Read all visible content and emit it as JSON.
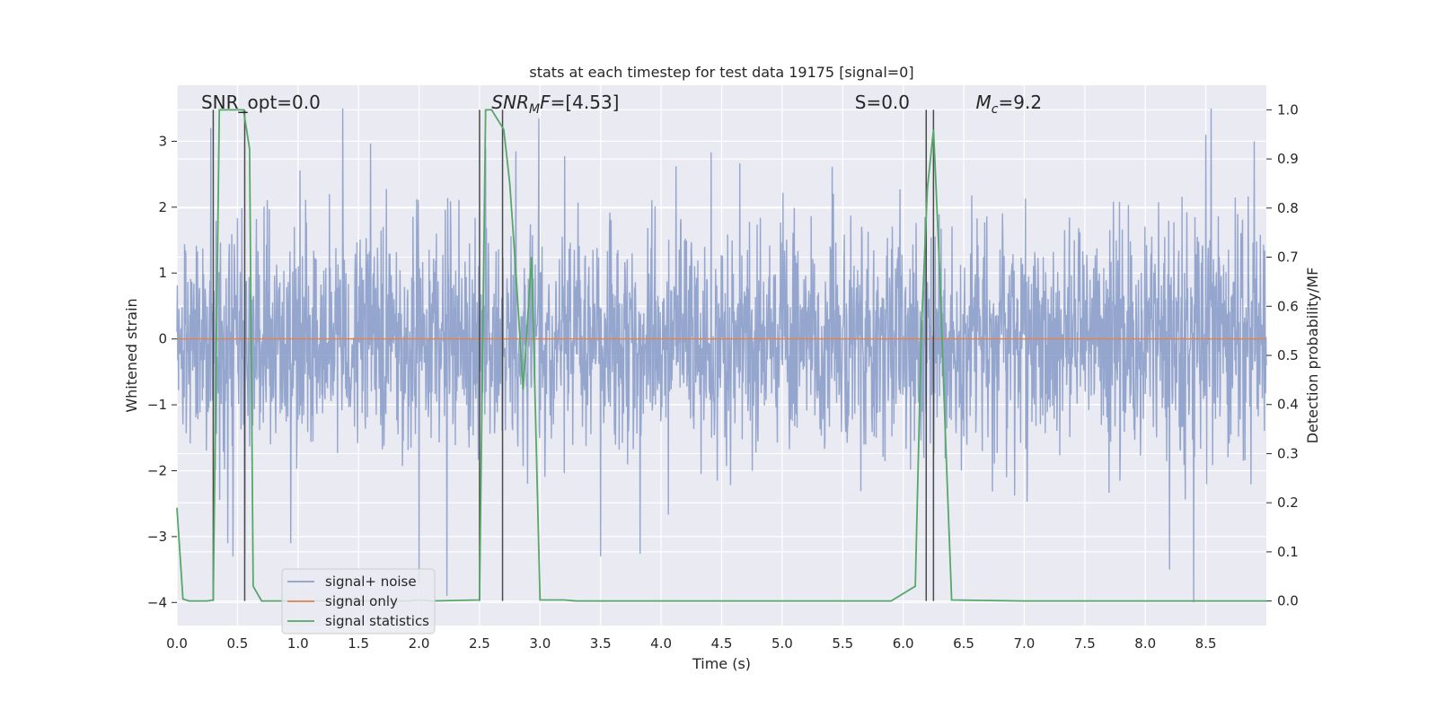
{
  "chart_data": {
    "type": "line",
    "title": "stats at each timestep for test data 19175 [signal=0]",
    "xlabel": "Time (s)",
    "ylabel": "Whitened strain",
    "y2label": "Detection probability/MF",
    "xlim": [
      0,
      9.0
    ],
    "ylim": [
      -4.35,
      3.85
    ],
    "y2lim": [
      -0.05,
      1.05
    ],
    "xticks": [
      0.0,
      0.5,
      1.0,
      1.5,
      2.0,
      2.5,
      3.0,
      3.5,
      4.0,
      4.5,
      5.0,
      5.5,
      6.0,
      6.5,
      7.0,
      7.5,
      8.0,
      8.5
    ],
    "xtick_labels": [
      "0.0",
      "0.5",
      "1.0",
      "1.5",
      "2.0",
      "2.5",
      "3.0",
      "3.5",
      "4.0",
      "4.5",
      "5.0",
      "5.5",
      "6.0",
      "6.5",
      "7.0",
      "7.5",
      "8.0",
      "8.5"
    ],
    "yticks": [
      -4,
      -3,
      -2,
      -1,
      0,
      1,
      2,
      3
    ],
    "ytick_labels": [
      "−4",
      "−3",
      "−2",
      "−1",
      "0",
      "1",
      "2",
      "3"
    ],
    "y2ticks": [
      0.0,
      0.1,
      0.2,
      0.3,
      0.4,
      0.5,
      0.6,
      0.7,
      0.8,
      0.9,
      1.0
    ],
    "y2tick_labels": [
      "0.0",
      "0.1",
      "0.2",
      "0.3",
      "0.4",
      "0.5",
      "0.6",
      "0.7",
      "0.8",
      "0.9",
      "1.0"
    ],
    "grid": true,
    "legend": "lower-left",
    "series": [
      {
        "name": "signal+ noise",
        "axis": "left",
        "color": "#8c9fca",
        "kind": "noise",
        "sample_rate": 300,
        "typical_range": [
          -1.6,
          1.6
        ],
        "peak_range": [
          -3.3,
          3.5
        ],
        "notable_peaks": [
          {
            "x": 0.28,
            "y": 3.2
          },
          {
            "x": 0.42,
            "y": -3.1
          },
          {
            "x": 0.56,
            "y": -3.25
          },
          {
            "x": 0.94,
            "y": -3.1
          },
          {
            "x": 1.37,
            "y": 3.5
          },
          {
            "x": 2.0,
            "y": -3.7
          },
          {
            "x": 2.23,
            "y": -3.9
          },
          {
            "x": 2.55,
            "y": 2.9
          },
          {
            "x": 2.99,
            "y": 3.35
          },
          {
            "x": 3.5,
            "y": -3.3
          },
          {
            "x": 8.2,
            "y": -3.5
          },
          {
            "x": 8.4,
            "y": -4.0
          },
          {
            "x": 8.5,
            "y": 3.1
          },
          {
            "x": 8.9,
            "y": 3.0
          }
        ]
      },
      {
        "name": "signal only",
        "axis": "left",
        "color": "#dd8452",
        "x": [
          0,
          9.0
        ],
        "y": [
          0,
          0
        ]
      },
      {
        "name": "signal statistics",
        "axis": "right",
        "color": "#55a868",
        "x": [
          0.0,
          0.05,
          0.1,
          0.25,
          0.3,
          0.35,
          0.55,
          0.6,
          0.63,
          0.7,
          0.8,
          1.9,
          2.0,
          2.1,
          2.5,
          2.55,
          2.6,
          2.7,
          2.75,
          2.8,
          2.86,
          2.93,
          3.0,
          3.2,
          3.3,
          4.0,
          5.0,
          5.9,
          6.1,
          6.15,
          6.2,
          6.25,
          6.3,
          6.35,
          6.4,
          7.0,
          8.0,
          9.0
        ],
        "y": [
          0.19,
          0.004,
          0.0,
          0.0,
          0.002,
          1.0,
          1.0,
          0.92,
          0.03,
          0.0,
          0.0,
          0.0,
          0.002,
          0.0,
          0.002,
          1.0,
          1.0,
          0.96,
          0.85,
          0.67,
          0.43,
          0.7,
          0.002,
          0.002,
          0.0,
          0.0,
          0.0,
          0.0,
          0.03,
          0.55,
          0.84,
          0.96,
          0.68,
          0.33,
          0.002,
          0.0,
          0.0,
          0.0
        ]
      }
    ],
    "vlines": [
      0.3,
      0.56,
      2.5,
      2.69,
      6.19,
      6.25
    ],
    "annotations": [
      {
        "text": "SNR_opt=0.0",
        "x": 0.2
      },
      {
        "text": "SNR_MF=[4.53]",
        "x": 2.6
      },
      {
        "text": "S=0.0",
        "x": 5.6
      },
      {
        "text": "M_c=9.2",
        "x": 6.6
      }
    ],
    "colors": {
      "background": "#eaeaf2",
      "grid": "#ffffff",
      "vline": "#4a4a4a"
    }
  }
}
